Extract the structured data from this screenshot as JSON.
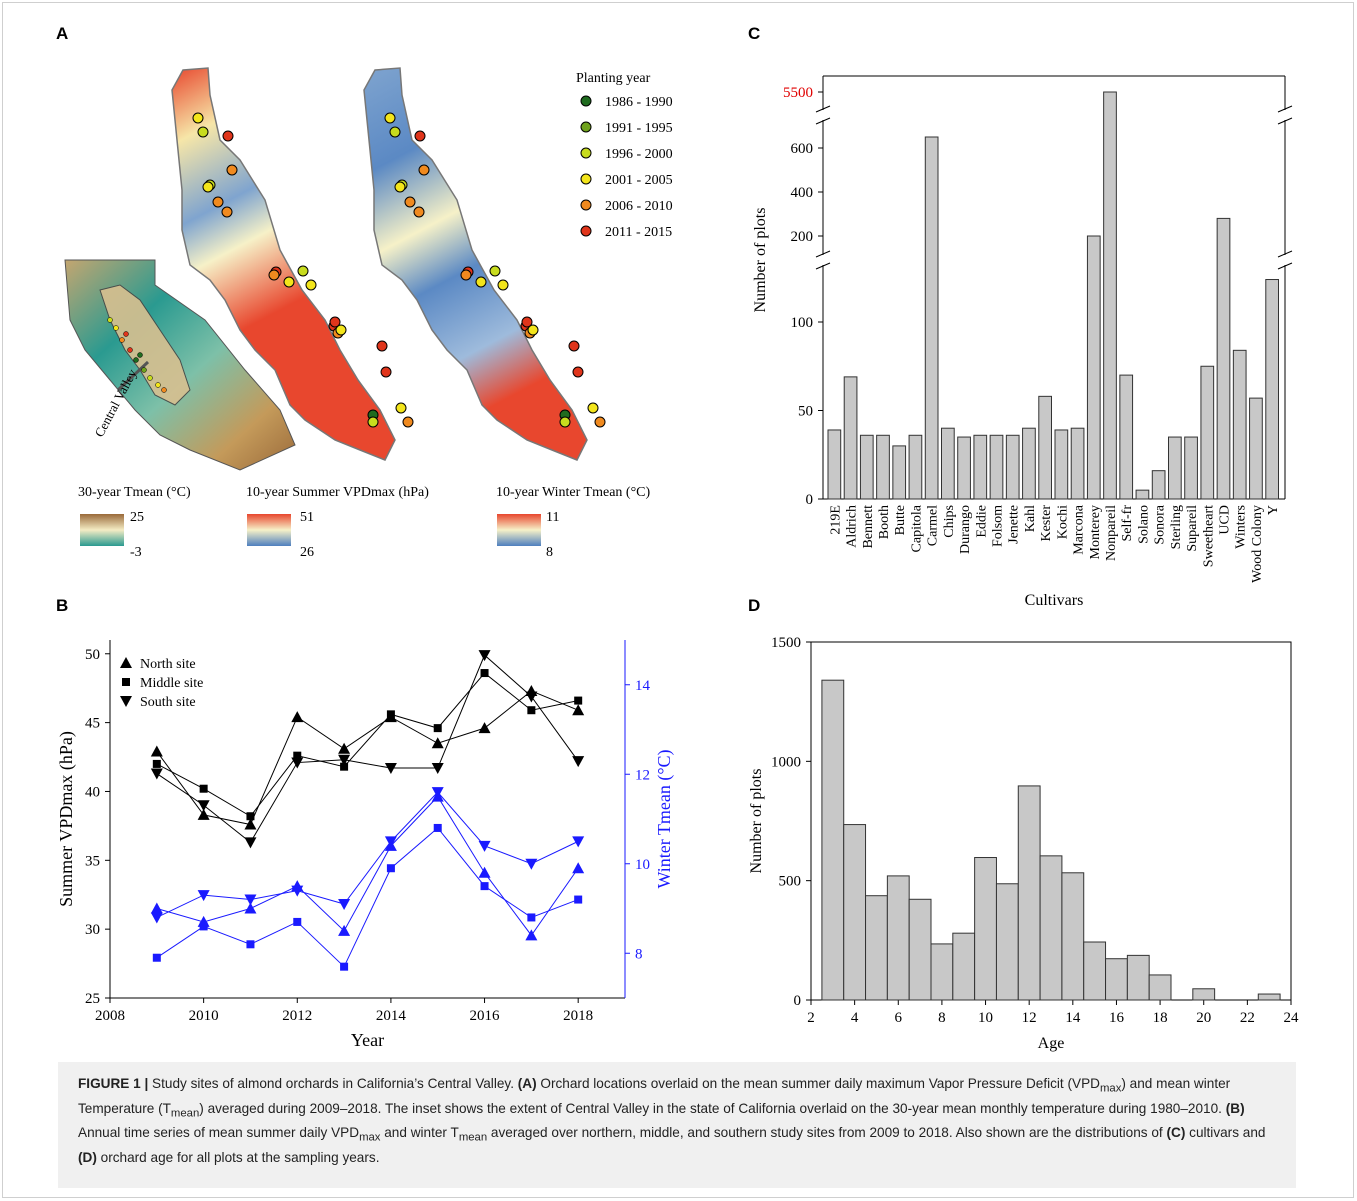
{
  "panels": {
    "a": "A",
    "b": "B",
    "c": "C",
    "d": "D"
  },
  "panel_a": {
    "legend_title": "Planting year",
    "planting_years": [
      {
        "label": "1986 - 1990",
        "color": "#1f6b1f"
      },
      {
        "label": "1991 - 1995",
        "color": "#6fa21c"
      },
      {
        "label": "1996 - 2000",
        "color": "#c8dc1e"
      },
      {
        "label": "2001 - 2005",
        "color": "#f3e51b"
      },
      {
        "label": "2006 - 2010",
        "color": "#f08a1f"
      },
      {
        "label": "2011 - 2015",
        "color": "#e0351b"
      }
    ],
    "inset_label": "Central Valley",
    "colorbars": [
      {
        "title": "30-year Tmean (°C)",
        "max": "25",
        "min": "-3",
        "colors": [
          "#9a6a3a",
          "#f4ecc4",
          "#2a9a90"
        ]
      },
      {
        "title": "10-year Summer VPDmax (hPa)",
        "max": "51",
        "min": "26",
        "colors": [
          "#e8472e",
          "#f6f1c8",
          "#4e7fbf"
        ]
      },
      {
        "title": "10-year Winter Tmean (°C)",
        "max": "11",
        "min": "8",
        "colors": [
          "#e8472e",
          "#f6f1c8",
          "#4e7fbf"
        ]
      }
    ]
  },
  "chart_data": [
    {
      "panel": "B",
      "type": "line",
      "xlabel": "Year",
      "ylabel": "Summer VPDmax (hPa)",
      "y2label": "Winter Tmean (°C)",
      "xlim": [
        2008,
        2019
      ],
      "ylim": [
        25,
        51
      ],
      "y2lim": [
        7,
        15
      ],
      "xticks": [
        2008,
        2010,
        2012,
        2014,
        2016,
        2018
      ],
      "yticks": [
        25,
        30,
        35,
        40,
        45,
        50
      ],
      "y2ticks": [
        8,
        10,
        12,
        14
      ],
      "x": [
        2009,
        2010,
        2011,
        2012,
        2013,
        2014,
        2015,
        2016,
        2017,
        2018
      ],
      "legend_position": "top-left",
      "series": [
        {
          "name": "North site",
          "axis": "left",
          "marker": "triangle-up",
          "values": [
            42.9,
            38.3,
            37.6,
            45.4,
            43.1,
            45.4,
            43.5,
            44.6,
            47.3,
            45.9
          ]
        },
        {
          "name": "Middle site",
          "axis": "left",
          "marker": "square",
          "values": [
            42.0,
            40.2,
            38.2,
            42.6,
            41.8,
            45.6,
            44.6,
            48.6,
            45.9,
            46.6
          ]
        },
        {
          "name": "South site",
          "axis": "left",
          "marker": "triangle-down",
          "values": [
            41.3,
            39.0,
            36.3,
            42.1,
            42.3,
            41.7,
            41.7,
            49.9,
            46.9,
            42.2
          ]
        },
        {
          "axis": "right",
          "marker": "triangle-up",
          "values": [
            9.0,
            8.7,
            9.0,
            9.5,
            8.5,
            10.4,
            11.5,
            9.8,
            8.4,
            9.9
          ]
        },
        {
          "axis": "right",
          "marker": "square",
          "values": [
            7.9,
            8.6,
            8.2,
            8.7,
            7.7,
            9.9,
            10.8,
            9.5,
            8.8,
            9.2
          ]
        },
        {
          "axis": "right",
          "marker": "triangle-down",
          "values": [
            8.8,
            9.3,
            9.2,
            9.4,
            9.1,
            10.5,
            11.6,
            10.4,
            10.0,
            10.5
          ]
        }
      ],
      "colors": {
        "left": "#000000",
        "right": "#1a1aff"
      }
    },
    {
      "panel": "C",
      "type": "bar",
      "xlabel": "Cultivars",
      "ylabel": "Number of plots",
      "broken_axis": true,
      "yticks_lower": [
        0,
        50,
        100
      ],
      "yticks_upper": [
        200,
        400,
        600
      ],
      "ytick_top": "5500",
      "categories": [
        "219E",
        "Aldrich",
        "Bennett",
        "Booth",
        "Butte",
        "Capitola",
        "Carmel",
        "Chips",
        "Durango",
        "Eddie",
        "Folsom",
        "Jenette",
        "Kahl",
        "Kester",
        "Kochi",
        "Marcona",
        "Monterey",
        "Nonpareil",
        "Self-fr",
        "Solano",
        "Sonora",
        "Sterling",
        "Supareil",
        "Sweetheart",
        "UCD",
        "Winters",
        "Wood Colony",
        "Y"
      ],
      "values": [
        39,
        69,
        36,
        36,
        30,
        36,
        650,
        40,
        35,
        36,
        36,
        36,
        40,
        58,
        39,
        40,
        200,
        5500,
        70,
        5,
        16,
        35,
        35,
        75,
        280,
        84,
        57,
        124
      ],
      "bar_color": "#c8c8c8"
    },
    {
      "panel": "D",
      "type": "bar",
      "xlabel": "Age",
      "ylabel": "Number of plots",
      "xlim": [
        2,
        24
      ],
      "ylim": [
        0,
        1500
      ],
      "xticks": [
        2,
        4,
        6,
        8,
        10,
        12,
        14,
        16,
        18,
        20,
        22,
        24
      ],
      "yticks": [
        0,
        500,
        1000,
        1500
      ],
      "categories": [
        3,
        4,
        5,
        6,
        7,
        8,
        9,
        10,
        11,
        12,
        13,
        14,
        15,
        16,
        17,
        18,
        20,
        23
      ],
      "values": [
        1340,
        735,
        437,
        520,
        422,
        235,
        280,
        597,
        487,
        897,
        604,
        533,
        243,
        173,
        187,
        105,
        47,
        25
      ],
      "bar_color": "#c8c8c8"
    }
  ],
  "caption": {
    "fig_label": "FIGURE 1 |",
    "s1": " Study sites of almond orchards in California’s Central Valley. ",
    "a_label": "(A)",
    "s2": " Orchard locations overlaid on the mean summer daily maximum Vapor Pressure Deficit (VPD",
    "vpd_sub": "max",
    "s3": ") and mean winter Temperature (T",
    "tmean_sub": "mean",
    "s4": ") averaged during 2009–2018. The inset shows the extent of Central Valley in the state of California overlaid on the 30-year mean monthly temperature during 1980–2010. ",
    "b_label": "(B)",
    "s5": " Annual time series of mean summer daily VPD",
    "vpd_sub2": "max",
    "s6": " and winter T",
    "tmean_sub2": "mean",
    "s7": " averaged over northern, middle, and southern study sites from 2009 to 2018. Also shown are the distributions of ",
    "c_label": "(C)",
    "s8": " cultivars and ",
    "d_label": "(D)",
    "s9": " orchard age for all plots at the sampling years."
  }
}
